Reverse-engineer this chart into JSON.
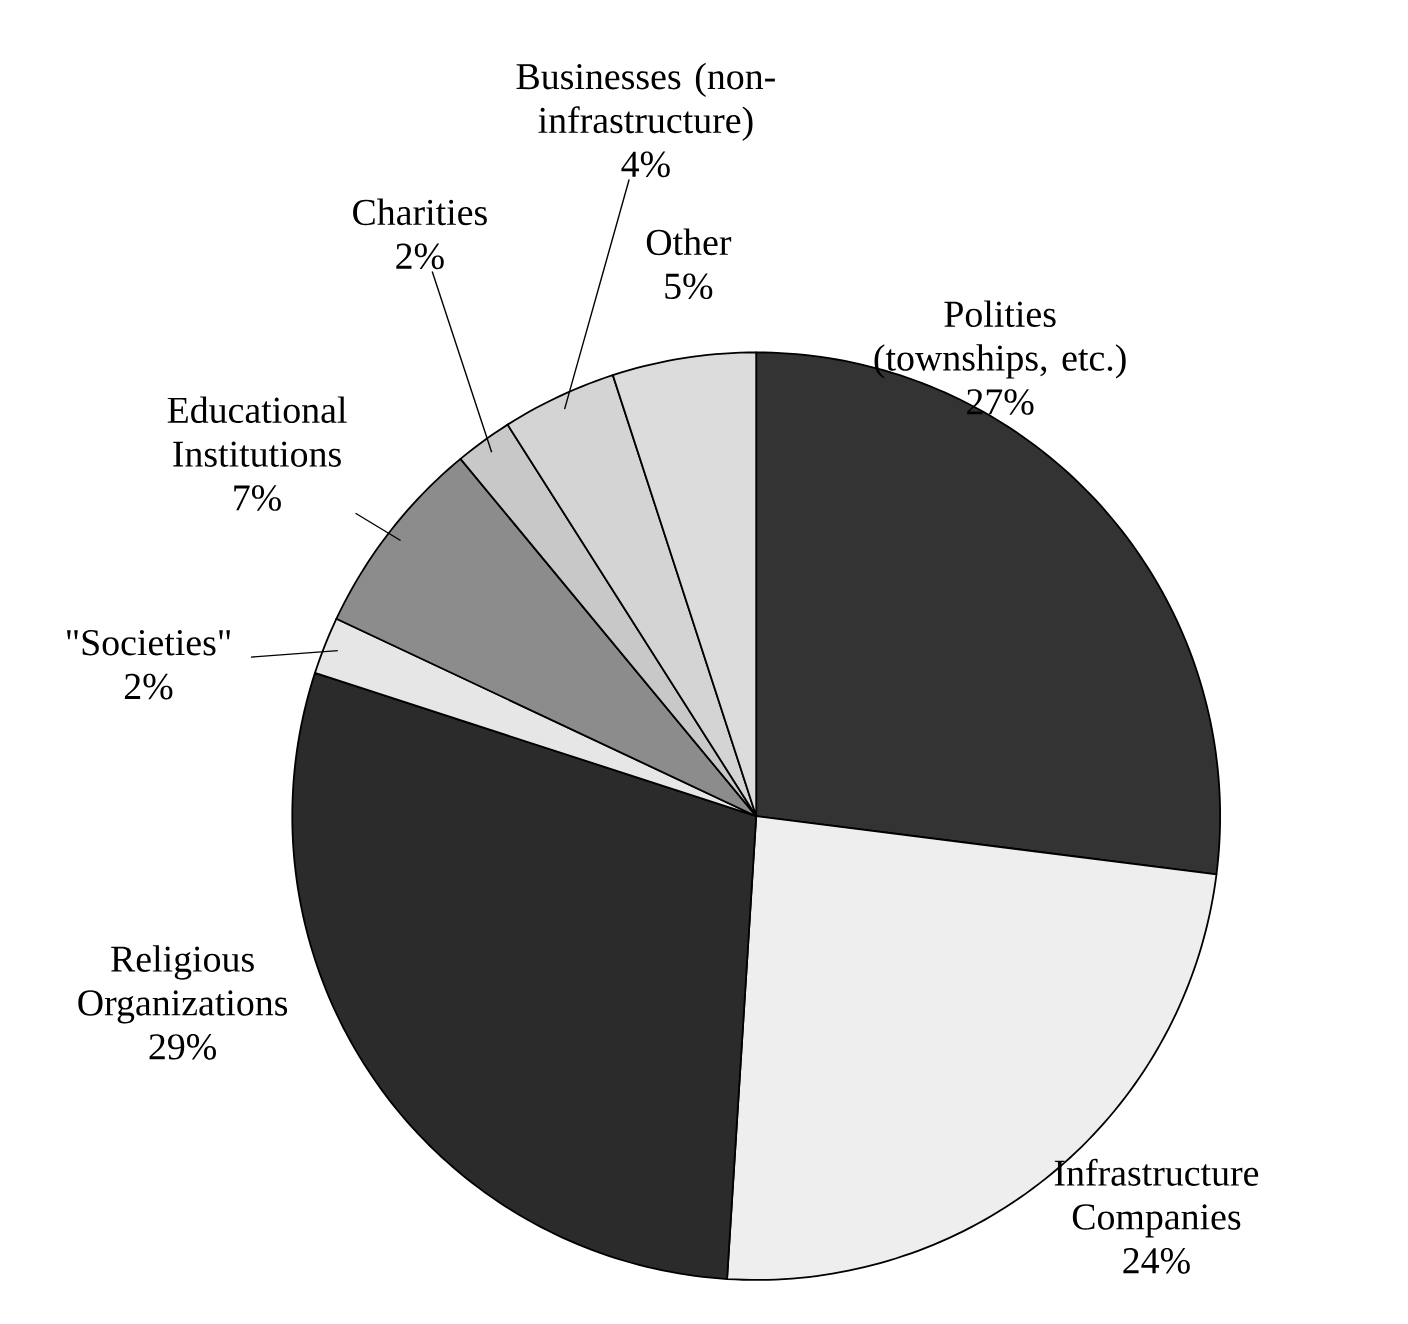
{
  "chart_data": {
    "type": "pie",
    "categories": [
      "Polities (townships, etc.)",
      "Infrastructure Companies",
      "Religious Organizations",
      "\"Societies\"",
      "Educational Institutions",
      "Charities",
      "Businesses (non-infrastructure)",
      "Other"
    ],
    "values": [
      27,
      24,
      29,
      2,
      7,
      2,
      4,
      5
    ],
    "value_labels": [
      "27%",
      "24%",
      "29%",
      "2%",
      "7%",
      "2%",
      "4%",
      "5%"
    ],
    "colors": [
      "#333333",
      "#eeeeee",
      "#2b2b2b",
      "#e6e6e6",
      "#8c8c8c",
      "#c8c8c8",
      "#d4d4d4",
      "#dcdcdc"
    ]
  }
}
